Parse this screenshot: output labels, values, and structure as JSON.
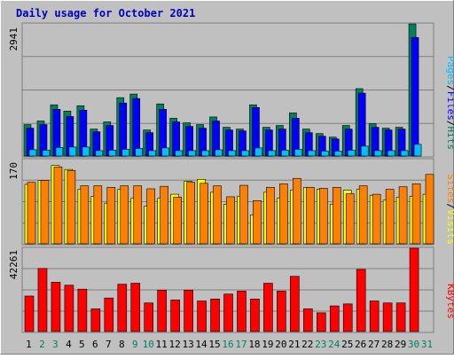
{
  "title": "Daily usage for October 2021",
  "colors": {
    "title": "#0000c0",
    "background": "#c0c0c0",
    "frame_light": "#ffffff",
    "frame_dark": "#808080",
    "grid": "#808080",
    "hits": "#00805c",
    "files": "#0000ff",
    "pages": "#00c0ff",
    "visits": "#ffff00",
    "sites": "#ff8000",
    "kbytes": "#ff0000",
    "weekday_label": "#000000",
    "weekend_label": "#00805c",
    "separator": "#000000"
  },
  "chart_data": [
    {
      "type": "bar",
      "panel": "hits-files-pages",
      "ymax_label": "2941",
      "ylim": [
        0,
        2941
      ],
      "x": [
        1,
        2,
        3,
        4,
        5,
        6,
        7,
        8,
        9,
        10,
        11,
        12,
        13,
        14,
        15,
        16,
        17,
        18,
        19,
        20,
        21,
        22,
        23,
        24,
        25,
        26,
        27,
        28,
        29,
        30,
        31
      ],
      "series": [
        {
          "name": "Hits",
          "color_key": "hits",
          "values": [
            700,
            780,
            1140,
            1000,
            1120,
            600,
            760,
            1300,
            1380,
            580,
            1160,
            840,
            740,
            700,
            870,
            640,
            600,
            1140,
            640,
            680,
            960,
            600,
            500,
            420,
            680,
            1500,
            720,
            620,
            640,
            2941,
            0
          ]
        },
        {
          "name": "Files",
          "color_key": "files",
          "values": [
            620,
            700,
            1040,
            880,
            1020,
            540,
            680,
            1180,
            1280,
            520,
            1040,
            760,
            660,
            620,
            780,
            580,
            560,
            1080,
            580,
            600,
            840,
            520,
            440,
            380,
            600,
            1400,
            640,
            580,
            600,
            2640,
            0
          ]
        },
        {
          "name": "Pages",
          "color_key": "pages",
          "values": [
            140,
            130,
            190,
            200,
            200,
            120,
            130,
            150,
            170,
            120,
            180,
            120,
            120,
            120,
            140,
            120,
            120,
            180,
            120,
            130,
            150,
            120,
            110,
            110,
            130,
            220,
            120,
            120,
            120,
            260,
            0
          ]
        }
      ]
    },
    {
      "type": "bar",
      "panel": "sites-visits",
      "ymax_label": "170",
      "ylim": [
        0,
        170
      ],
      "x": [
        1,
        2,
        3,
        4,
        5,
        6,
        7,
        8,
        9,
        10,
        11,
        12,
        13,
        14,
        15,
        16,
        17,
        18,
        19,
        20,
        21,
        22,
        23,
        24,
        25,
        26,
        27,
        28,
        29,
        30,
        31
      ],
      "series": [
        {
          "name": "Visits",
          "color_key": "visits",
          "values": [
            120,
            128,
            158,
            150,
            110,
            96,
            82,
            110,
            92,
            76,
            92,
            100,
            126,
            130,
            104,
            80,
            96,
            58,
            104,
            92,
            108,
            114,
            110,
            80,
            108,
            110,
            98,
            88,
            94,
            96,
            100
          ]
        },
        {
          "name": "Sites",
          "color_key": "sites",
          "values": [
            124,
            128,
            155,
            148,
            117,
            117,
            114,
            117,
            117,
            111,
            116,
            94,
            124,
            122,
            117,
            95,
            118,
            87,
            114,
            121,
            132,
            114,
            112,
            114,
            101,
            117,
            100,
            110,
            115,
            121,
            140
          ]
        }
      ]
    },
    {
      "type": "bar",
      "panel": "kbytes",
      "ymax_label": "42261",
      "ylim": [
        0,
        42261
      ],
      "x": [
        1,
        2,
        3,
        4,
        5,
        6,
        7,
        8,
        9,
        10,
        11,
        12,
        13,
        14,
        15,
        16,
        17,
        18,
        19,
        20,
        21,
        22,
        23,
        24,
        25,
        26,
        27,
        28,
        29,
        30,
        31
      ],
      "series": [
        {
          "name": "KBytes",
          "color_key": "kbytes",
          "values": [
            18000,
            32000,
            25000,
            23500,
            21500,
            11500,
            17000,
            24000,
            24500,
            14500,
            21000,
            16000,
            21000,
            15500,
            16500,
            19000,
            20500,
            16500,
            24500,
            20500,
            28000,
            11500,
            9500,
            13000,
            14000,
            31500,
            15500,
            14500,
            14500,
            42261,
            0
          ]
        }
      ]
    }
  ],
  "side_labels": [
    {
      "parts": [
        {
          "text": "Pages",
          "color_key": "pages"
        },
        {
          "text": "/",
          "color_key": "separator"
        },
        {
          "text": "Files",
          "color_key": "files"
        },
        {
          "text": "/",
          "color_key": "separator"
        },
        {
          "text": "Hits",
          "color_key": "hits"
        }
      ]
    },
    {
      "parts": [
        {
          "text": "Sites",
          "color_key": "sites"
        },
        {
          "text": "/",
          "color_key": "separator"
        },
        {
          "text": "Visits",
          "color_key": "visits"
        }
      ]
    },
    {
      "parts": [
        {
          "text": "KBytes",
          "color_key": "kbytes"
        }
      ]
    }
  ],
  "day_labels": [
    {
      "text": "1",
      "weekend": false
    },
    {
      "text": "2",
      "weekend": true
    },
    {
      "text": "3",
      "weekend": true
    },
    {
      "text": "4",
      "weekend": false
    },
    {
      "text": "5",
      "weekend": false
    },
    {
      "text": "6",
      "weekend": false
    },
    {
      "text": "7",
      "weekend": false
    },
    {
      "text": "8",
      "weekend": false
    },
    {
      "text": "9",
      "weekend": true
    },
    {
      "text": "10",
      "weekend": true
    },
    {
      "text": "11",
      "weekend": false
    },
    {
      "text": "12",
      "weekend": false
    },
    {
      "text": "13",
      "weekend": false
    },
    {
      "text": "14",
      "weekend": false
    },
    {
      "text": "15",
      "weekend": false
    },
    {
      "text": "16",
      "weekend": true
    },
    {
      "text": "17",
      "weekend": true
    },
    {
      "text": "18",
      "weekend": false
    },
    {
      "text": "19",
      "weekend": false
    },
    {
      "text": "20",
      "weekend": false
    },
    {
      "text": "21",
      "weekend": false
    },
    {
      "text": "22",
      "weekend": false
    },
    {
      "text": "23",
      "weekend": true
    },
    {
      "text": "24",
      "weekend": true
    },
    {
      "text": "25",
      "weekend": false
    },
    {
      "text": "26",
      "weekend": false
    },
    {
      "text": "27",
      "weekend": false
    },
    {
      "text": "28",
      "weekend": false
    },
    {
      "text": "29",
      "weekend": false
    },
    {
      "text": "30",
      "weekend": true
    },
    {
      "text": "31",
      "weekend": true
    }
  ]
}
